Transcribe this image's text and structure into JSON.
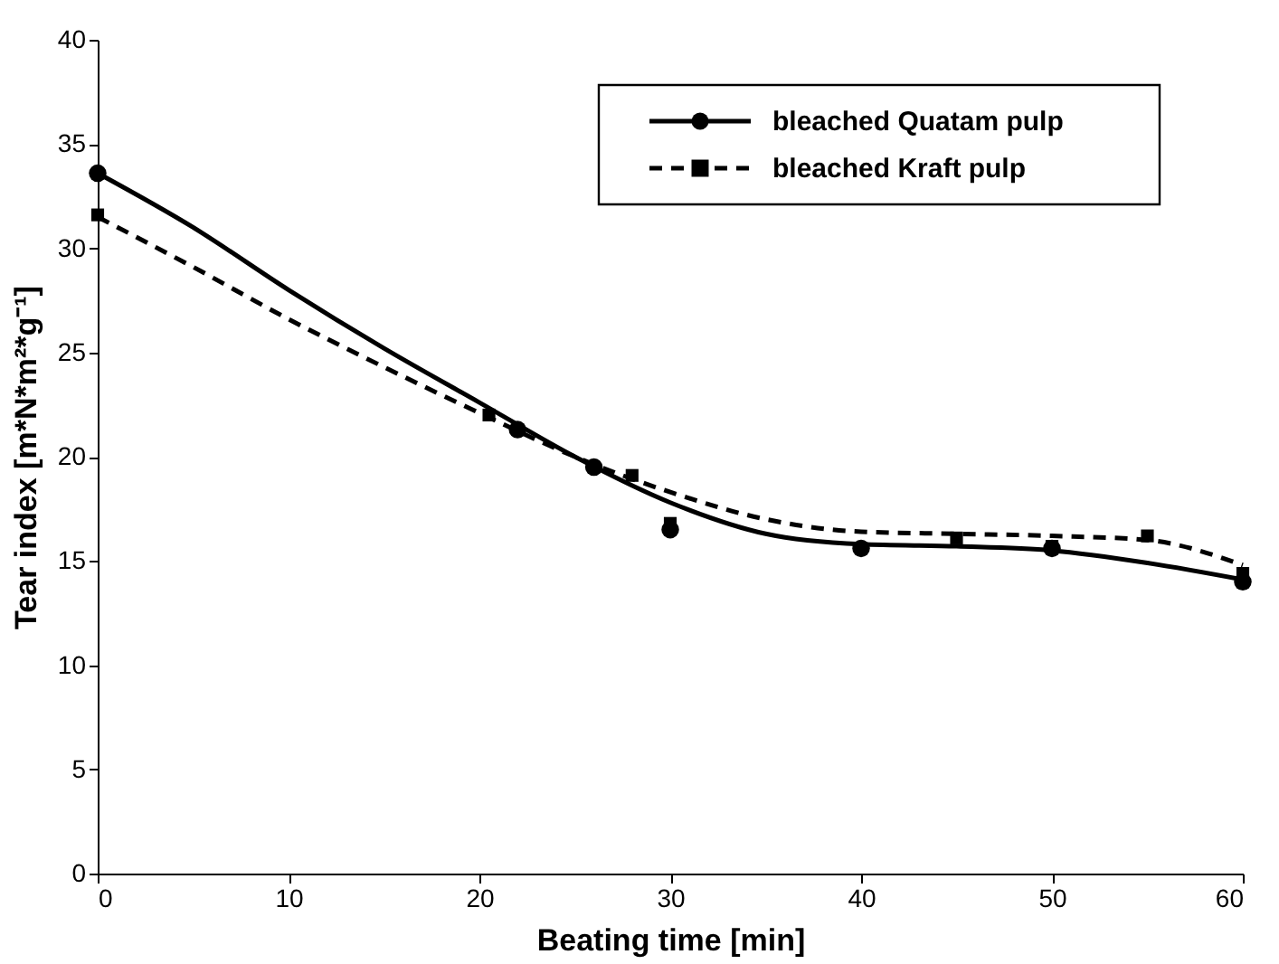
{
  "chart_data": {
    "type": "scatter",
    "xlabel": "Beating time [min]",
    "ylabel": "Tear index [m*N*m²*g⁻¹]",
    "xlim": [
      0,
      60
    ],
    "xticks": [
      0,
      10,
      20,
      30,
      40,
      50,
      60
    ],
    "ylim": [
      0,
      40
    ],
    "yticks": [
      0,
      5,
      10,
      15,
      20,
      25,
      30,
      35,
      40
    ],
    "legend": "top right",
    "grid": false,
    "series": [
      {
        "name": "bleached Quatam pulp",
        "type": "scatter",
        "marker": "circle",
        "color": "#000000",
        "x": [
          0,
          22,
          26,
          30,
          40,
          50,
          60
        ],
        "values": [
          33.6,
          21.3,
          19.5,
          16.5,
          15.6,
          15.6,
          14.0
        ]
      },
      {
        "name": "bleached Kraft pulp",
        "type": "scatter",
        "marker": "square",
        "color": "#000000",
        "x": [
          0,
          20.5,
          28,
          30,
          45,
          50,
          55,
          60
        ],
        "values": [
          31.6,
          22.0,
          19.1,
          16.8,
          16.1,
          15.7,
          16.2,
          14.4
        ]
      },
      {
        "type": "line",
        "line_style": "solid",
        "color": "#000000",
        "x": [
          0,
          5,
          10,
          15,
          20,
          25,
          30,
          35,
          40,
          45,
          50,
          55,
          60
        ],
        "values": [
          33.6,
          31.0,
          28.0,
          25.2,
          22.6,
          20.0,
          17.8,
          16.3,
          15.8,
          15.7,
          15.5,
          14.9,
          14.1
        ]
      },
      {
        "type": "line",
        "line_style": "dashed",
        "color": "#000000",
        "x": [
          0,
          5,
          10,
          15,
          20,
          25,
          30,
          35,
          40,
          45,
          50,
          55,
          60
        ],
        "values": [
          31.5,
          29.1,
          26.6,
          24.3,
          22.1,
          20.0,
          18.3,
          17.0,
          16.4,
          16.3,
          16.2,
          16.0,
          14.8
        ]
      }
    ]
  }
}
